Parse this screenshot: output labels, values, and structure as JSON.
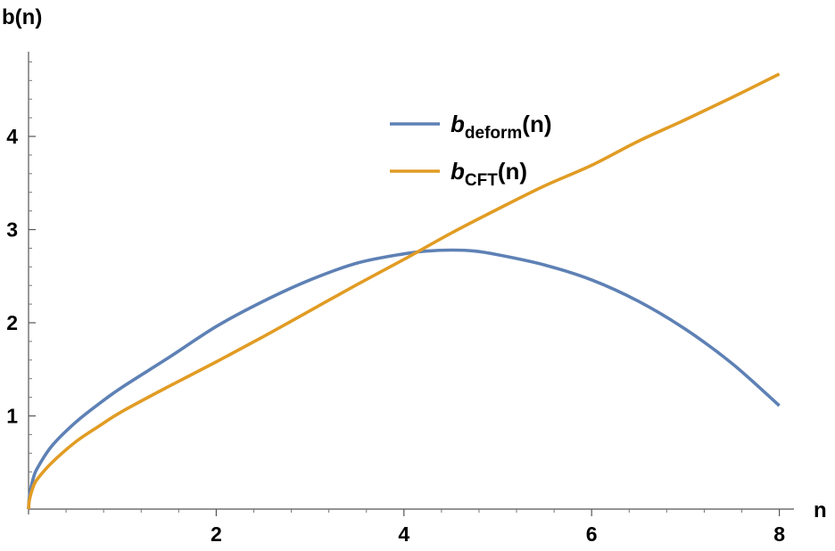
{
  "chart_data": {
    "type": "line",
    "title": "",
    "xlabel": "n",
    "ylabel": "b(n)",
    "xlim": [
      0,
      8.1
    ],
    "ylim": [
      0,
      4.8
    ],
    "xticks": [
      {
        "value": 2,
        "label": "2"
      },
      {
        "value": 4,
        "label": "4"
      },
      {
        "value": 6,
        "label": "6"
      },
      {
        "value": 8,
        "label": "8"
      }
    ],
    "yticks": [
      {
        "value": 1,
        "label": "1"
      },
      {
        "value": 2,
        "label": "2"
      },
      {
        "value": 3,
        "label": "3"
      },
      {
        "value": 4,
        "label": "4"
      }
    ],
    "grid": false,
    "legend_position": "top-center",
    "series": [
      {
        "name": "b_deform(n)",
        "legend_main": "b",
        "legend_sub": "deform",
        "legend_suffix": "(n)",
        "color": "#5e81b5",
        "x": [
          0,
          0.01,
          0.05,
          0.1,
          0.25,
          0.5,
          0.75,
          1,
          1.5,
          2,
          2.5,
          3,
          3.5,
          4,
          4.25,
          4.5,
          4.75,
          5,
          5.5,
          6,
          6.5,
          7,
          7.5,
          8
        ],
        "y": [
          0,
          0.14,
          0.33,
          0.45,
          0.68,
          0.93,
          1.13,
          1.31,
          1.63,
          1.96,
          2.23,
          2.46,
          2.64,
          2.74,
          2.77,
          2.78,
          2.77,
          2.73,
          2.62,
          2.46,
          2.23,
          1.93,
          1.56,
          1.11
        ]
      },
      {
        "name": "b_CFT(n)",
        "legend_main": "b",
        "legend_sub": "CFT",
        "legend_suffix": "(n)",
        "color": "#e19c24",
        "x": [
          0,
          0.01,
          0.05,
          0.1,
          0.25,
          0.5,
          0.75,
          1,
          1.5,
          2,
          2.5,
          3,
          3.5,
          4,
          4.5,
          5,
          5.5,
          6,
          6.5,
          7,
          7.5,
          8
        ],
        "y": [
          0,
          0.1,
          0.24,
          0.33,
          0.5,
          0.72,
          0.89,
          1.05,
          1.32,
          1.58,
          1.85,
          2.13,
          2.41,
          2.68,
          2.96,
          3.22,
          3.47,
          3.69,
          3.95,
          4.18,
          4.42,
          4.67
        ]
      }
    ]
  }
}
